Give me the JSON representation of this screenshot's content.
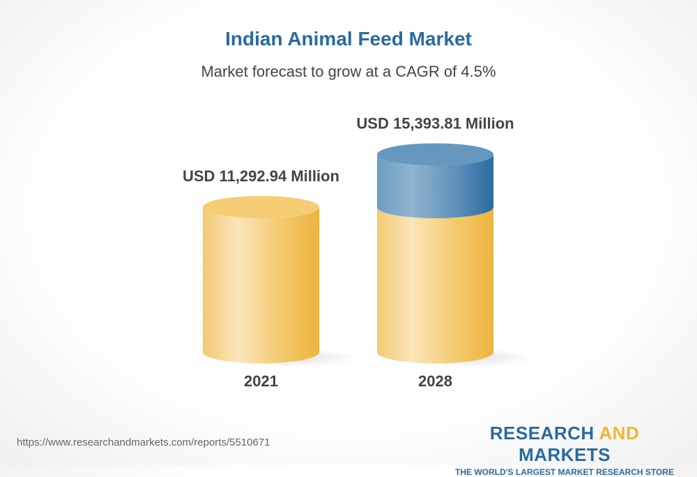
{
  "chart_data": {
    "type": "bar",
    "title": "Indian Animal Feed Market",
    "subtitle": "Market forecast to grow at a CAGR of 4.5%",
    "categories": [
      "2021",
      "2028"
    ],
    "values": [
      11292.94,
      15393.81
    ],
    "data_labels": [
      "USD 11,292.94 Million",
      "USD 15,393.81 Million"
    ],
    "unit": "USD Million",
    "style": "3d-cylinder",
    "colors": {
      "base": "#f2c15a",
      "growth": "#4a86b5"
    }
  },
  "footer": {
    "url": "https://www.researchandmarkets.com/reports/5510671",
    "logo_part1": "RESEARCH ",
    "logo_part2": "AND",
    "logo_part3": " MARKETS",
    "tagline": "THE WORLD'S LARGEST MARKET RESEARCH STORE"
  }
}
